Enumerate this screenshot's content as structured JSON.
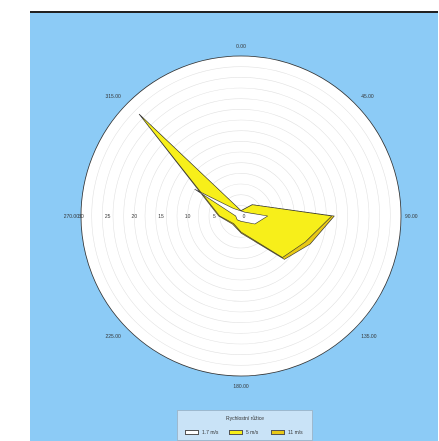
{
  "chart_data": {
    "type": "radar",
    "directions": [
      "0.00",
      "45.00",
      "90.00",
      "135.00",
      "180.00",
      "225.00",
      "270.00",
      "315.00"
    ],
    "radial_ticks": [
      "0",
      "5",
      "10",
      "15",
      "20",
      "25",
      "30"
    ],
    "rlim": [
      0,
      30
    ],
    "grid": true,
    "legend": {
      "title": "Rychlostní růžice",
      "placement": "bottom"
    },
    "series": [
      {
        "name": "1.7 m/s",
        "color": "#ffffff",
        "points": [
          {
            "angle": 300,
            "value": 10
          },
          {
            "angle": 315,
            "value": 2
          },
          {
            "angle": 45,
            "value": 1
          },
          {
            "angle": 90,
            "value": 5
          },
          {
            "angle": 120,
            "value": 3
          },
          {
            "angle": 180,
            "value": 1
          },
          {
            "angle": 225,
            "value": 1
          },
          {
            "angle": 270,
            "value": 1
          }
        ]
      },
      {
        "name": "5 m/s",
        "color": "#f7ef1a",
        "points": [
          {
            "angle": 315,
            "value": 27
          },
          {
            "angle": 0,
            "value": 1
          },
          {
            "angle": 45,
            "value": 3
          },
          {
            "angle": 90,
            "value": 17
          },
          {
            "angle": 112,
            "value": 13
          },
          {
            "angle": 135,
            "value": 11
          },
          {
            "angle": 180,
            "value": 3
          },
          {
            "angle": 225,
            "value": 2
          },
          {
            "angle": 270,
            "value": 4
          }
        ]
      },
      {
        "name": "11 m/s",
        "color": "#e8c816",
        "points": [
          {
            "angle": 315,
            "value": 27
          },
          {
            "angle": 0,
            "value": 1
          },
          {
            "angle": 45,
            "value": 3
          },
          {
            "angle": 90,
            "value": 17.5
          },
          {
            "angle": 112,
            "value": 14
          },
          {
            "angle": 135,
            "value": 11.5
          },
          {
            "angle": 180,
            "value": 3.2
          },
          {
            "angle": 225,
            "value": 2.2
          },
          {
            "angle": 270,
            "value": 4.2
          }
        ]
      }
    ]
  }
}
